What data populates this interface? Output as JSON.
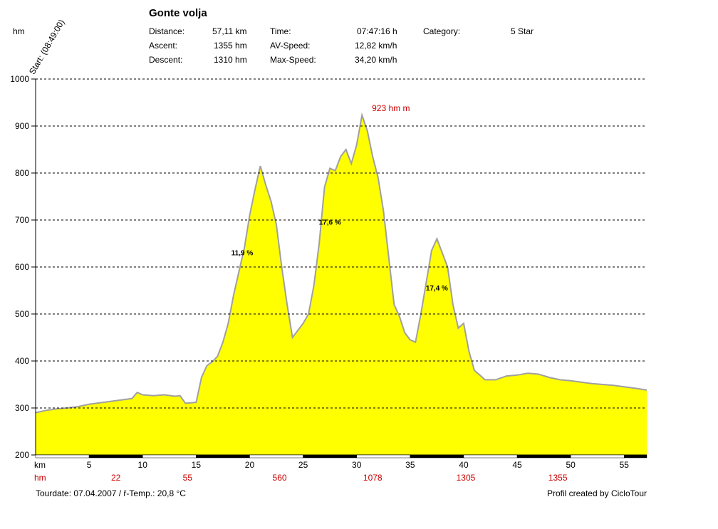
{
  "header": {
    "title": "Gonte volja",
    "unit_label": "hm",
    "start_label": "Start: (08:49:00)",
    "stats": [
      {
        "label": "Distance:",
        "value": "57,11 km"
      },
      {
        "label": "Ascent:",
        "value": "1355 hm"
      },
      {
        "label": "Descent:",
        "value": "1310 hm"
      },
      {
        "label": "Time:",
        "value": "07:47:16 h"
      },
      {
        "label": "AV-Speed:",
        "value": "12,82 km/h"
      },
      {
        "label": "Max-Speed:",
        "value": "34,20 km/h"
      },
      {
        "label": "Category:",
        "value": "5 Star"
      }
    ]
  },
  "footer": {
    "tourdate": "Tourdate: 07.04.2007  /  ř-Temp.: 20,8 °C",
    "credit": "Profil created by CicloTour"
  },
  "colors": {
    "fill": "#ffff00",
    "outline": "#a0a0a0",
    "accent": "#cc0000",
    "grid": "#000000"
  },
  "chart_data": {
    "type": "area",
    "title": "Gonte volja",
    "xlabel": "km",
    "ylabel": "hm",
    "xlim": [
      0,
      57.11
    ],
    "ylim": [
      200,
      1000
    ],
    "y_ticks": [
      200,
      300,
      400,
      500,
      600,
      700,
      800,
      900,
      1000
    ],
    "x_ticks": [
      5,
      10,
      15,
      20,
      25,
      30,
      35,
      40,
      45,
      50,
      55
    ],
    "grid": true,
    "x": [
      0,
      1,
      2,
      3,
      4,
      5,
      6,
      7,
      8,
      9,
      9.5,
      10,
      11,
      12,
      13,
      13.5,
      14,
      15,
      15.5,
      16,
      16.5,
      17,
      17.5,
      18,
      18.5,
      19,
      19.5,
      20,
      20.5,
      21,
      21.5,
      22,
      22.5,
      23,
      23.5,
      24,
      24.5,
      25,
      25.5,
      26,
      26.5,
      27,
      27.5,
      28,
      28.5,
      29,
      29.5,
      30,
      30.5,
      31,
      31.5,
      32,
      32.5,
      33,
      33.5,
      34,
      34.5,
      35,
      35.5,
      36,
      37,
      37.5,
      38,
      38.5,
      39,
      39.5,
      40,
      40.5,
      41,
      41.5,
      42,
      43,
      44,
      45,
      46,
      47,
      48,
      49,
      50,
      52,
      54,
      55,
      56,
      57.11
    ],
    "y": [
      290,
      295,
      298,
      300,
      303,
      308,
      311,
      314,
      317,
      320,
      333,
      328,
      326,
      328,
      325,
      326,
      310,
      312,
      365,
      390,
      398,
      410,
      440,
      480,
      540,
      590,
      640,
      710,
      765,
      815,
      775,
      740,
      690,
      600,
      520,
      450,
      465,
      480,
      500,
      560,
      650,
      770,
      810,
      805,
      835,
      850,
      820,
      860,
      923,
      890,
      835,
      790,
      720,
      620,
      520,
      495,
      460,
      445,
      440,
      500,
      635,
      660,
      630,
      600,
      520,
      470,
      480,
      420,
      380,
      370,
      360,
      360,
      368,
      370,
      374,
      372,
      365,
      360,
      358,
      352,
      348,
      345,
      342,
      338
    ],
    "x_annotations": [
      {
        "km": 7.5,
        "hm": "22"
      },
      {
        "km": 14.2,
        "hm": "55"
      },
      {
        "km": 22.8,
        "hm": "560"
      },
      {
        "km": 31.5,
        "hm": "1078"
      },
      {
        "km": 40.2,
        "hm": "1305"
      },
      {
        "km": 48.8,
        "hm": "1355"
      }
    ],
    "annotations": [
      {
        "text": "11,9 %",
        "x": 19.3,
        "y": 625
      },
      {
        "text": "17,6 %",
        "x": 27.5,
        "y": 690
      },
      {
        "text": "17,4 %",
        "x": 37.5,
        "y": 550
      },
      {
        "text": "923 hm m",
        "x": 33.2,
        "y": 932,
        "color": "#cc0000"
      }
    ]
  }
}
